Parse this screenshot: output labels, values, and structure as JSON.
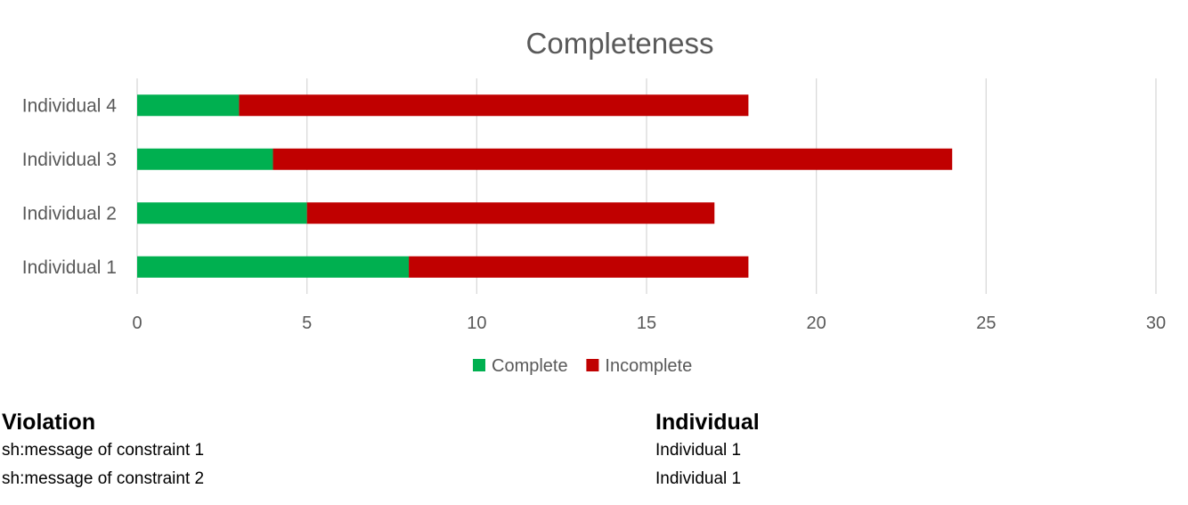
{
  "chart_data": {
    "type": "bar",
    "orientation": "horizontal",
    "stacked": true,
    "title": "Completeness",
    "categories": [
      "Individual 1",
      "Individual 2",
      "Individual 3",
      "Individual 4"
    ],
    "series": [
      {
        "name": "Complete",
        "color": "#00b050",
        "values": [
          8,
          5,
          4,
          3
        ]
      },
      {
        "name": "Incomplete",
        "color": "#c00000",
        "values": [
          10,
          12,
          20,
          15
        ]
      }
    ],
    "xlim": [
      0,
      30
    ],
    "xticks": [
      0,
      5,
      10,
      15,
      20,
      25,
      30
    ],
    "grid": "vertical",
    "legend": "bottom"
  },
  "table": {
    "violation_header": "Violation",
    "individual_header": "Individual",
    "rows": [
      {
        "violation": "sh:message of constraint 1",
        "individual": "Individual 1"
      },
      {
        "violation": "sh:message of constraint 2",
        "individual": "Individual 1"
      }
    ]
  }
}
